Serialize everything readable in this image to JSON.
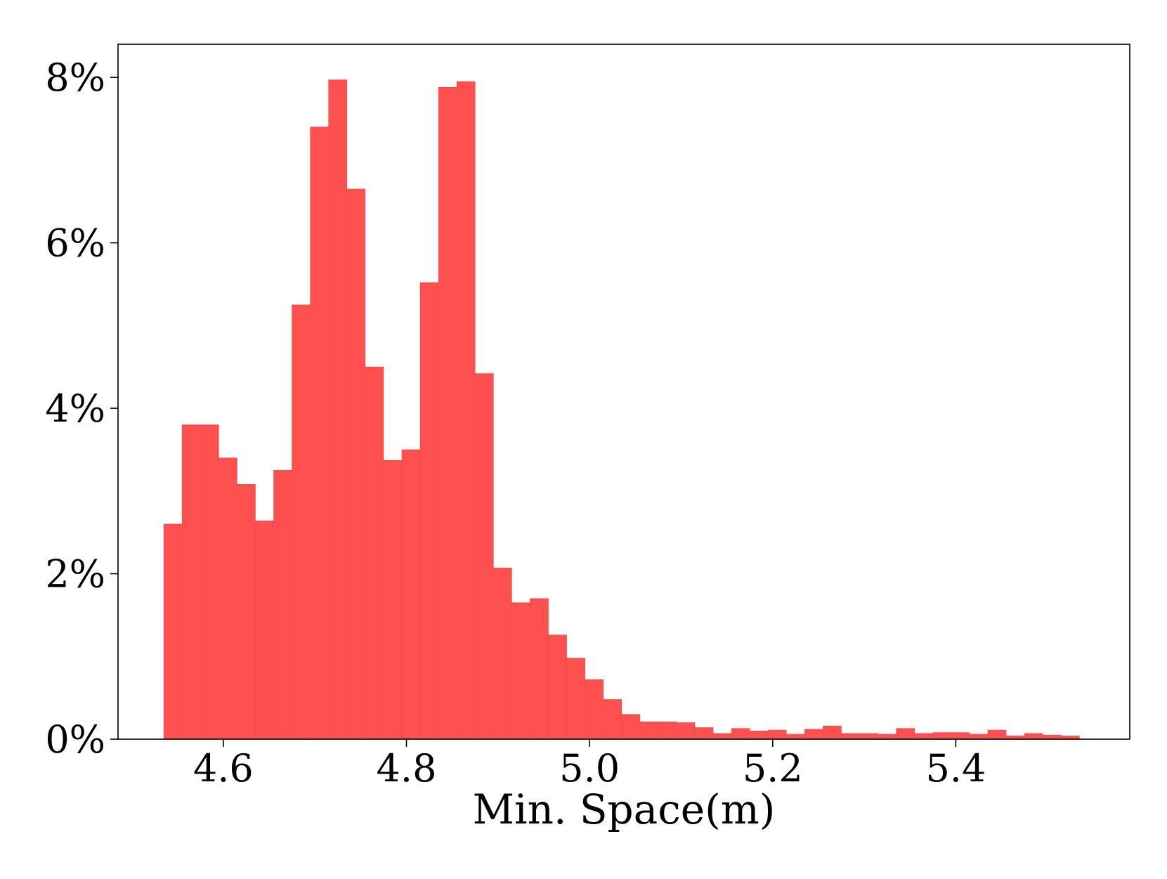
{
  "chart_data": {
    "type": "bar",
    "xlabel": "Min. Space(m)",
    "ylabel": "",
    "title": "",
    "xlim": [
      4.485,
      5.59
    ],
    "ylim": [
      0,
      8.4
    ],
    "xticks": [
      4.6,
      4.8,
      5.0,
      5.2,
      5.4
    ],
    "xtick_labels": [
      "4.6",
      "4.8",
      "5.0",
      "5.2",
      "5.4"
    ],
    "yticks": [
      0,
      2,
      4,
      6,
      8
    ],
    "ytick_labels": [
      "0%",
      "2%",
      "4%",
      "6%",
      "8%"
    ],
    "bin_start": 4.535,
    "bin_width": 0.02,
    "bar_color": "#ff5050",
    "grid": false,
    "legend": false,
    "values": [
      2.6,
      3.8,
      3.8,
      3.4,
      3.08,
      2.64,
      3.25,
      5.25,
      7.4,
      7.97,
      6.65,
      4.5,
      3.37,
      3.5,
      5.52,
      7.88,
      7.95,
      4.42,
      2.07,
      1.65,
      1.7,
      1.26,
      0.98,
      0.72,
      0.48,
      0.3,
      0.21,
      0.21,
      0.2,
      0.14,
      0.07,
      0.13,
      0.1,
      0.11,
      0.06,
      0.12,
      0.16,
      0.07,
      0.07,
      0.06,
      0.13,
      0.07,
      0.08,
      0.08,
      0.06,
      0.11,
      0.04,
      0.07,
      0.05,
      0.04
    ]
  }
}
